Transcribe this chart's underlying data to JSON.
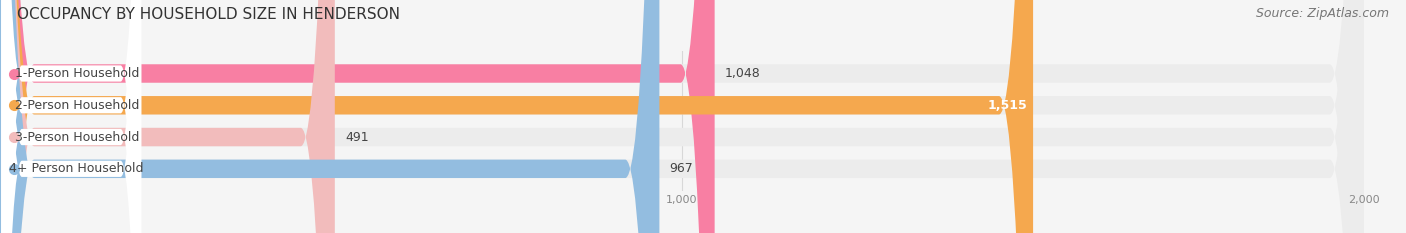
{
  "title": "OCCUPANCY BY HOUSEHOLD SIZE IN HENDERSON",
  "source": "Source: ZipAtlas.com",
  "categories": [
    "1-Person Household",
    "2-Person Household",
    "3-Person Household",
    "4+ Person Household"
  ],
  "values": [
    1048,
    1515,
    491,
    967
  ],
  "bar_colors": [
    "#f87fa3",
    "#f5a84e",
    "#f2bcbc",
    "#93bde0"
  ],
  "xlim": [
    0,
    2000
  ],
  "xticks": [
    0,
    1000,
    2000
  ],
  "value_labels": [
    "1,048",
    "1,515",
    "491",
    "967"
  ],
  "title_fontsize": 11,
  "source_fontsize": 9,
  "label_fontsize": 9,
  "value_fontsize": 9,
  "bar_height": 0.58,
  "figsize": [
    14.06,
    2.33
  ],
  "dpi": 100,
  "bg_color": "#f5f5f5",
  "row_bg_color": "#ececec",
  "label_bg_color": "#ffffff",
  "grid_color": "#d8d8d8",
  "text_color": "#444444",
  "source_color": "#777777"
}
